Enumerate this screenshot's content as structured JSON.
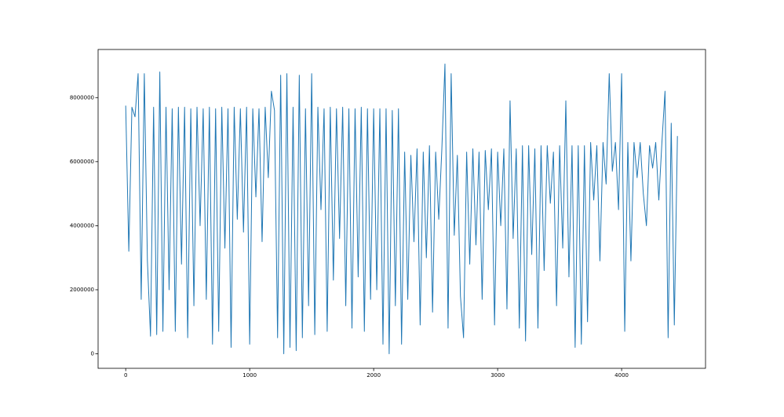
{
  "chart_data": {
    "type": "line",
    "color": "#1f77b4",
    "x": [
      0,
      25,
      50,
      75,
      100,
      125,
      150,
      175,
      200,
      225,
      250,
      275,
      300,
      325,
      350,
      375,
      400,
      425,
      450,
      475,
      500,
      525,
      550,
      575,
      600,
      625,
      650,
      675,
      700,
      725,
      750,
      775,
      800,
      825,
      850,
      875,
      900,
      925,
      950,
      975,
      1000,
      1025,
      1050,
      1075,
      1100,
      1125,
      1150,
      1175,
      1200,
      1225,
      1250,
      1275,
      1300,
      1325,
      1350,
      1375,
      1400,
      1425,
      1450,
      1475,
      1500,
      1525,
      1550,
      1575,
      1600,
      1625,
      1650,
      1675,
      1700,
      1725,
      1750,
      1775,
      1800,
      1825,
      1850,
      1875,
      1900,
      1925,
      1950,
      1975,
      2000,
      2025,
      2050,
      2075,
      2100,
      2125,
      2150,
      2175,
      2200,
      2225,
      2250,
      2275,
      2300,
      2325,
      2350,
      2375,
      2400,
      2425,
      2450,
      2475,
      2500,
      2525,
      2550,
      2575,
      2600,
      2625,
      2650,
      2675,
      2700,
      2725,
      2750,
      2775,
      2800,
      2825,
      2850,
      2875,
      2900,
      2925,
      2950,
      2975,
      3000,
      3025,
      3050,
      3075,
      3100,
      3125,
      3150,
      3175,
      3200,
      3225,
      3250,
      3275,
      3300,
      3325,
      3350,
      3375,
      3400,
      3425,
      3450,
      3475,
      3500,
      3525,
      3550,
      3575,
      3600,
      3625,
      3650,
      3675,
      3700,
      3725,
      3750,
      3775,
      3800,
      3825,
      3850,
      3875,
      3900,
      3925,
      3950,
      3975,
      4000,
      4025,
      4050,
      4075,
      4100,
      4125,
      4150,
      4175,
      4200,
      4225,
      4250,
      4275,
      4300,
      4325,
      4350,
      4375,
      4400,
      4425,
      4450
    ],
    "values": [
      7750000,
      3200000,
      7700000,
      7400000,
      8750000,
      1700000,
      8750000,
      2900000,
      550000,
      7700000,
      600000,
      8800000,
      700000,
      7700000,
      2000000,
      7650000,
      700000,
      7700000,
      2800000,
      7700000,
      500000,
      7650000,
      1500000,
      7700000,
      4000000,
      7650000,
      1700000,
      7700000,
      300000,
      7650000,
      700000,
      7700000,
      3300000,
      7650000,
      200000,
      7700000,
      4200000,
      7650000,
      3800000,
      7700000,
      300000,
      7650000,
      4900000,
      7650000,
      3500000,
      7700000,
      5500000,
      8200000,
      7600000,
      500000,
      8700000,
      0,
      8750000,
      200000,
      7700000,
      100000,
      8700000,
      500000,
      7650000,
      1500000,
      8750000,
      600000,
      7700000,
      4500000,
      7650000,
      700000,
      7700000,
      2300000,
      7650000,
      3600000,
      7700000,
      1500000,
      7650000,
      800000,
      7650000,
      2400000,
      7700000,
      700000,
      7650000,
      1700000,
      7650000,
      2000000,
      7650000,
      300000,
      7650000,
      0,
      7600000,
      1500000,
      7650000,
      300000,
      6300000,
      1700000,
      6200000,
      3500000,
      6400000,
      900000,
      6300000,
      3000000,
      6500000,
      1300000,
      6300000,
      4200000,
      6400000,
      9050000,
      800000,
      8750000,
      3700000,
      6200000,
      1800000,
      500000,
      6300000,
      2800000,
      6400000,
      3400000,
      6300000,
      1700000,
      6350000,
      4500000,
      6400000,
      900000,
      6300000,
      4000000,
      6400000,
      1400000,
      7900000,
      3600000,
      6400000,
      800000,
      6500000,
      400000,
      6500000,
      3100000,
      6400000,
      800000,
      6500000,
      2600000,
      6500000,
      4700000,
      6300000,
      1500000,
      6500000,
      3300000,
      7900000,
      2400000,
      6500000,
      200000,
      6500000,
      300000,
      6500000,
      1000000,
      6600000,
      4800000,
      6500000,
      2900000,
      6600000,
      5300000,
      8750000,
      5700000,
      6600000,
      4500000,
      8750000,
      700000,
      6600000,
      2900000,
      6600000,
      5500000,
      6600000,
      5000000,
      4000000,
      6500000,
      5800000,
      6600000,
      4800000,
      6600000,
      8200000,
      500000,
      7200000,
      900000,
      6800000
    ],
    "xlim": [
      -222.7,
      4676.7
    ],
    "xticks": [
      0,
      1000,
      2000,
      3000,
      4000
    ],
    "ylim": [
      -452500,
      9502500
    ],
    "yticks": [
      0,
      2000000,
      4000000,
      6000000,
      8000000
    ]
  }
}
